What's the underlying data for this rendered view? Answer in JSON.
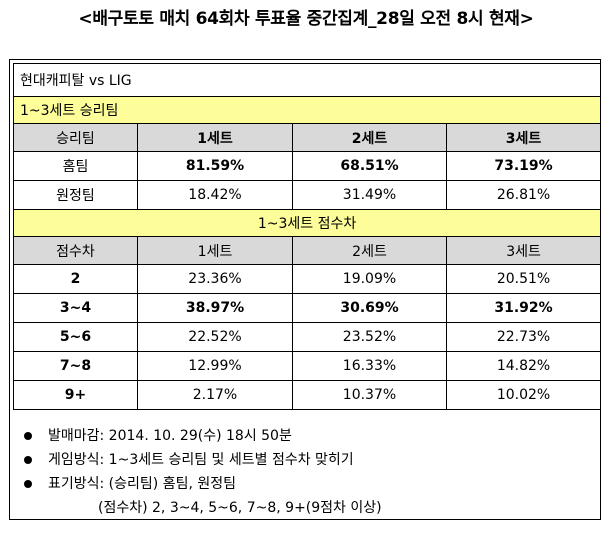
{
  "title": "<배구토토 매치 64회차 투표율 중간집계_28일 오전 8시 현재>",
  "match": "현대캐피탈 vs LIG",
  "section1": {
    "label": "1~3세트 승리팀",
    "headers": [
      "승리팀",
      "1세트",
      "2세트",
      "3세트"
    ],
    "rows": [
      {
        "label": "홈팀",
        "values": [
          "81.59%",
          "68.51%",
          "73.19%"
        ]
      },
      {
        "label": "원정팀",
        "values": [
          "18.42%",
          "31.49%",
          "26.81%"
        ]
      }
    ]
  },
  "section2": {
    "label": "1~3세트 점수차",
    "headers": [
      "점수차",
      "1세트",
      "2세트",
      "3세트"
    ],
    "rows": [
      {
        "label": "2",
        "values": [
          "23.36%",
          "19.09%",
          "20.51%"
        ]
      },
      {
        "label": "3~4",
        "values": [
          "38.97%",
          "30.69%",
          "31.92%"
        ]
      },
      {
        "label": "5~6",
        "values": [
          "22.52%",
          "23.52%",
          "22.73%"
        ]
      },
      {
        "label": "7~8",
        "values": [
          "12.99%",
          "16.33%",
          "14.82%"
        ]
      },
      {
        "label": "9+",
        "values": [
          "2.17%",
          "10.37%",
          "10.02%"
        ]
      }
    ]
  },
  "notes": [
    "발매마감: 2014. 10. 29(수) 18시 50분",
    "게임방식: 1~3세트 승리팀 및 세트별 점수차 맞히기",
    "표기방식: (승리팀) 홈팀, 원정팀"
  ],
  "note_continuation": "(점수차) 2, 3~4, 5~6, 7~8, 9+(9점차 이상)"
}
